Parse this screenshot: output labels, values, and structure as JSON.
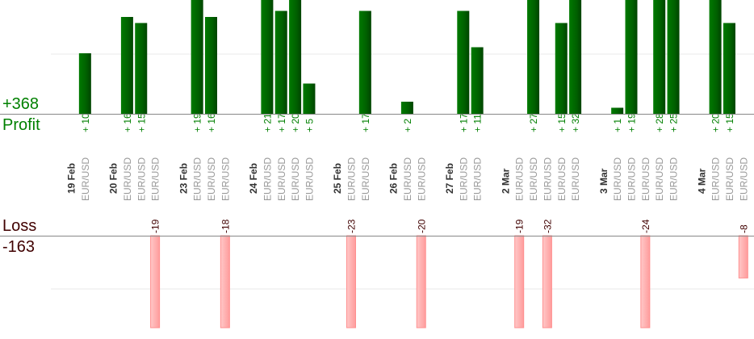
{
  "chart_data": {
    "type": "bar",
    "title": "",
    "profit_total": "+368",
    "profit_label": "Profit",
    "loss_label": "Loss",
    "loss_total": "-163",
    "grid": true,
    "colors": {
      "profit": "#006400",
      "profit_text": "#008000",
      "loss": "#ffb0b0",
      "loss_border": "#ff9090",
      "loss_text": "#400000",
      "pair_text": "#999999",
      "date_text": "#333333"
    },
    "days": [
      {
        "date": "19 Feb",
        "trades": [
          {
            "pair": "EUR/USD",
            "value": 10
          }
        ]
      },
      {
        "date": "20 Feb",
        "trades": [
          {
            "pair": "EUR/USD",
            "value": 16
          },
          {
            "pair": "EUR/USD",
            "value": 15
          },
          {
            "pair": "EUR/USD",
            "value": -19
          }
        ]
      },
      {
        "date": "23 Feb",
        "trades": [
          {
            "pair": "EUR/USD",
            "value": 19
          },
          {
            "pair": "EUR/USD",
            "value": 16
          },
          {
            "pair": "EUR/USD",
            "value": -18
          }
        ]
      },
      {
        "date": "24 Feb",
        "trades": [
          {
            "pair": "EUR/USD",
            "value": 21
          },
          {
            "pair": "EUR/USD",
            "value": 17
          },
          {
            "pair": "EUR/USD",
            "value": 20
          },
          {
            "pair": "EUR/USD",
            "value": 5
          }
        ]
      },
      {
        "date": "25 Feb",
        "trades": [
          {
            "pair": "EUR/USD",
            "value": -23
          },
          {
            "pair": "EUR/USD",
            "value": 17
          }
        ]
      },
      {
        "date": "26 Feb",
        "trades": [
          {
            "pair": "EUR/USD",
            "value": 2
          },
          {
            "pair": "EUR/USD",
            "value": -20
          }
        ]
      },
      {
        "date": "27 Feb",
        "trades": [
          {
            "pair": "EUR/USD",
            "value": 17
          },
          {
            "pair": "EUR/USD",
            "value": 11
          }
        ]
      },
      {
        "date": "2 Mar",
        "trades": [
          {
            "pair": "EUR/USD",
            "value": -19
          },
          {
            "pair": "EUR/USD",
            "value": 27
          },
          {
            "pair": "EUR/USD",
            "value": -32
          },
          {
            "pair": "EUR/USD",
            "value": 15
          },
          {
            "pair": "EUR/USD",
            "value": 32
          }
        ]
      },
      {
        "date": "3 Mar",
        "trades": [
          {
            "pair": "EUR/USD",
            "value": 1
          },
          {
            "pair": "EUR/USD",
            "value": 19
          },
          {
            "pair": "EUR/USD",
            "value": -24
          },
          {
            "pair": "EUR/USD",
            "value": 28
          },
          {
            "pair": "EUR/USD",
            "value": 25
          }
        ]
      },
      {
        "date": "4 Mar",
        "trades": [
          {
            "pair": "EUR/USD",
            "value": 20
          },
          {
            "pair": "EUR/USD",
            "value": 15
          },
          {
            "pair": "EUR/USD",
            "value": -8
          }
        ]
      }
    ]
  }
}
